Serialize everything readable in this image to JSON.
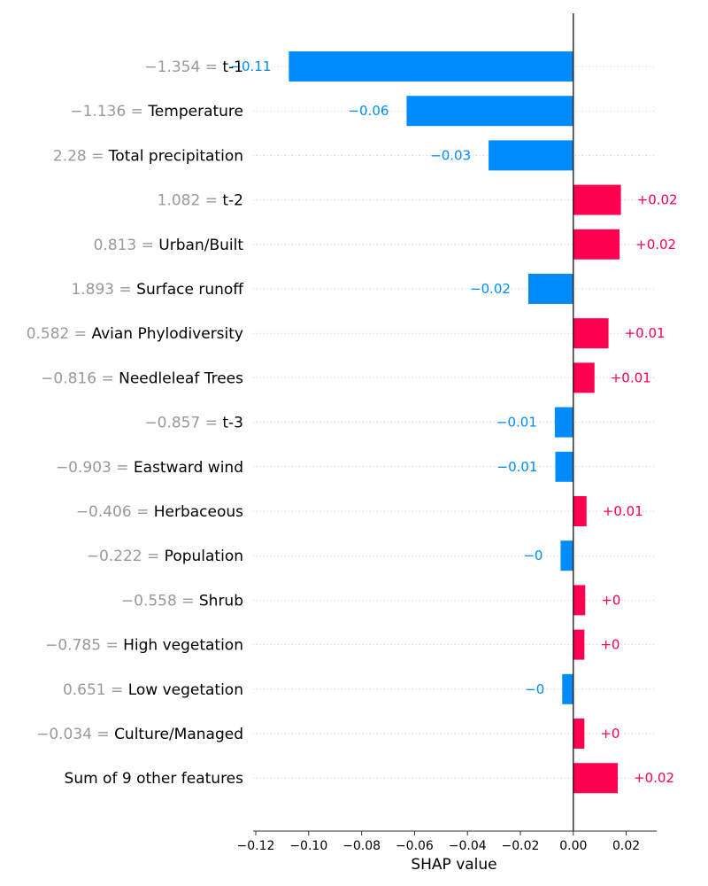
{
  "chart_data": {
    "type": "bar",
    "orientation": "horizontal",
    "xlabel": "SHAP value",
    "xlim": [
      -0.121,
      0.0315
    ],
    "xticks": [
      -0.12,
      -0.1,
      -0.08,
      -0.06,
      -0.04,
      -0.02,
      0.0,
      0.02
    ],
    "xtick_labels": [
      "−0.12",
      "−0.10",
      "−0.08",
      "−0.06",
      "−0.04",
      "−0.02",
      "0.00",
      "0.02"
    ],
    "grid": "dotted horizontal row lines",
    "zero_line": true,
    "colors": {
      "negative": "#008bfb",
      "positive": "#ff0051",
      "feature_value": "#999999",
      "label": "#000000"
    },
    "rows": [
      {
        "feature_value": "−1.354",
        "feature": "t-1",
        "value": -0.1075,
        "value_label": "−0.11"
      },
      {
        "feature_value": "−1.136",
        "feature": "Temperature",
        "value": -0.063,
        "value_label": "−0.06"
      },
      {
        "feature_value": "2.28",
        "feature": "Total precipitation",
        "value": -0.032,
        "value_label": "−0.03"
      },
      {
        "feature_value": "1.082",
        "feature": "t-2",
        "value": 0.018,
        "value_label": "+0.02"
      },
      {
        "feature_value": "0.813",
        "feature": "Urban/Built",
        "value": 0.0175,
        "value_label": "+0.02"
      },
      {
        "feature_value": "1.893",
        "feature": "Surface runoff",
        "value": -0.017,
        "value_label": "−0.02"
      },
      {
        "feature_value": "0.582",
        "feature": "Avian Phylodiversity",
        "value": 0.0133,
        "value_label": "+0.01"
      },
      {
        "feature_value": "−0.816",
        "feature": "Needleleaf Trees",
        "value": 0.008,
        "value_label": "+0.01"
      },
      {
        "feature_value": "−0.857",
        "feature": "t-3",
        "value": -0.007,
        "value_label": "−0.01"
      },
      {
        "feature_value": "−0.903",
        "feature": "Eastward wind",
        "value": -0.0068,
        "value_label": "−0.01"
      },
      {
        "feature_value": "−0.406",
        "feature": "Herbaceous",
        "value": 0.005,
        "value_label": "+0.01"
      },
      {
        "feature_value": "−0.222",
        "feature": "Population",
        "value": -0.0048,
        "value_label": "−0"
      },
      {
        "feature_value": "−0.558",
        "feature": "Shrub",
        "value": 0.0045,
        "value_label": "+0"
      },
      {
        "feature_value": "−0.785",
        "feature": "High vegetation",
        "value": 0.0042,
        "value_label": "+0"
      },
      {
        "feature_value": "0.651",
        "feature": "Low vegetation",
        "value": -0.0042,
        "value_label": "−0"
      },
      {
        "feature_value": "−0.034",
        "feature": "Culture/Managed",
        "value": 0.0042,
        "value_label": "+0"
      },
      {
        "feature_value": "",
        "feature": "Sum of 9 other features",
        "value": 0.0168,
        "value_label": "+0.02"
      }
    ]
  }
}
